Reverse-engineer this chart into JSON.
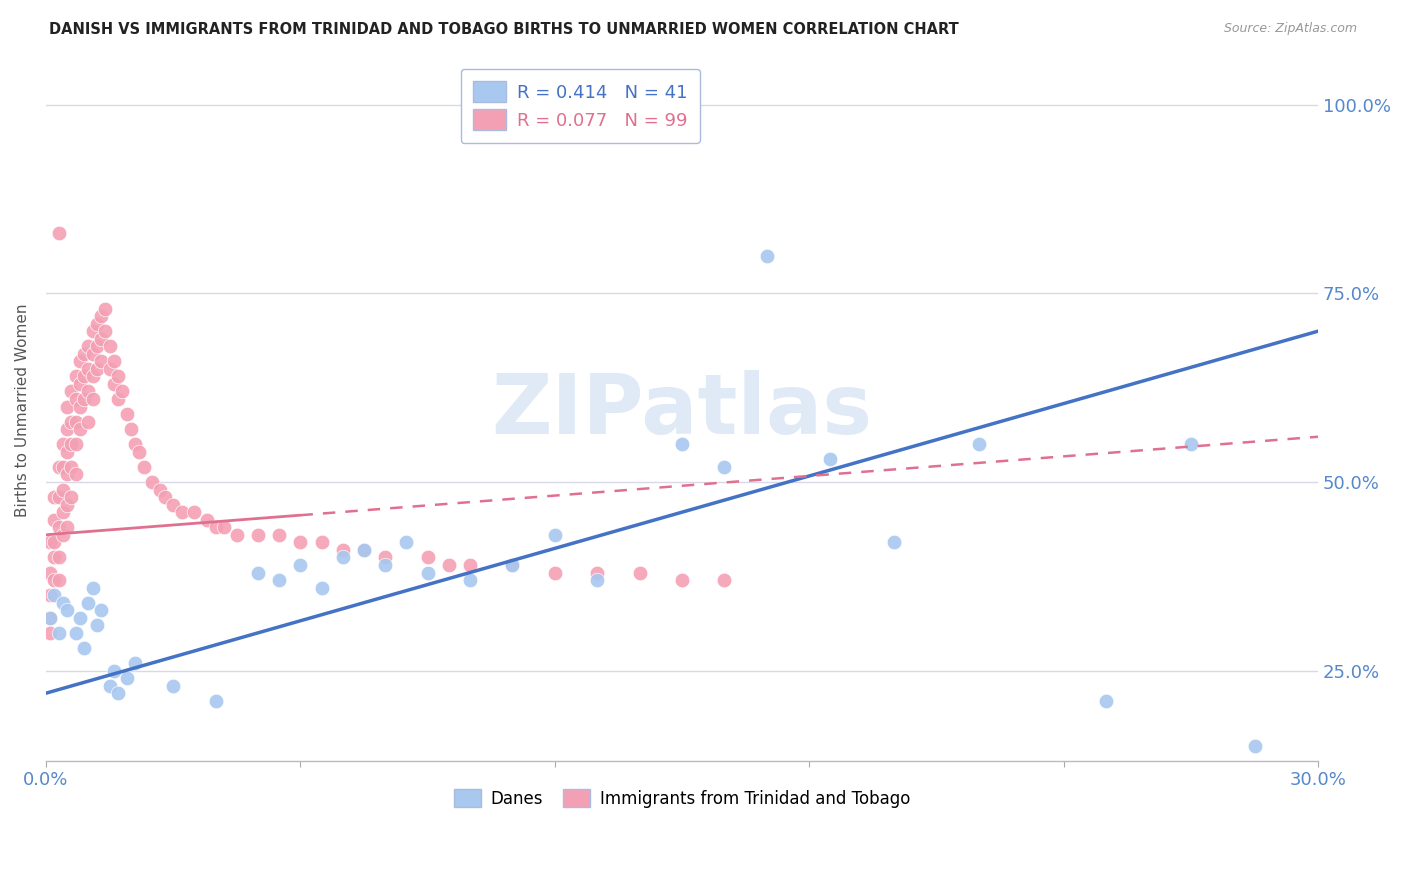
{
  "title": "DANISH VS IMMIGRANTS FROM TRINIDAD AND TOBAGO BIRTHS TO UNMARRIED WOMEN CORRELATION CHART",
  "source": "Source: ZipAtlas.com",
  "ylabel": "Births to Unmarried Women",
  "ytick_labels": [
    "25.0%",
    "50.0%",
    "75.0%",
    "100.0%"
  ],
  "ytick_values": [
    0.25,
    0.5,
    0.75,
    1.0
  ],
  "xlim": [
    0.0,
    0.3
  ],
  "ylim": [
    0.13,
    1.06
  ],
  "danes_R": 0.414,
  "danes_N": 41,
  "immigrants_R": 0.077,
  "immigrants_N": 99,
  "danes_color": "#A8C8F0",
  "immigrants_color": "#F4A0B4",
  "trend_blue": "#4472C4",
  "trend_pink": "#E07090",
  "background_color": "#FFFFFF",
  "grid_color": "#D8D8E8",
  "axis_label_color": "#5588CC",
  "watermark_color": "#C8D8F0",
  "legend_edge_color": "#AABBDD",
  "danes_label": "Danes",
  "immigrants_label": "Immigrants from Trinidad and Tobago",
  "danes_x": [
    0.001,
    0.002,
    0.003,
    0.004,
    0.005,
    0.007,
    0.008,
    0.009,
    0.01,
    0.011,
    0.012,
    0.013,
    0.015,
    0.016,
    0.017,
    0.019,
    0.021,
    0.03,
    0.04,
    0.05,
    0.055,
    0.06,
    0.065,
    0.07,
    0.075,
    0.08,
    0.085,
    0.09,
    0.1,
    0.11,
    0.12,
    0.13,
    0.15,
    0.16,
    0.17,
    0.185,
    0.2,
    0.22,
    0.25,
    0.27,
    0.285
  ],
  "danes_y": [
    0.32,
    0.35,
    0.3,
    0.34,
    0.33,
    0.3,
    0.32,
    0.28,
    0.34,
    0.36,
    0.31,
    0.33,
    0.23,
    0.25,
    0.22,
    0.24,
    0.26,
    0.23,
    0.21,
    0.38,
    0.37,
    0.39,
    0.36,
    0.4,
    0.41,
    0.39,
    0.42,
    0.38,
    0.37,
    0.39,
    0.43,
    0.37,
    0.55,
    0.52,
    0.8,
    0.53,
    0.42,
    0.55,
    0.21,
    0.55,
    0.15
  ],
  "imm_x": [
    0.001,
    0.001,
    0.001,
    0.001,
    0.001,
    0.002,
    0.002,
    0.002,
    0.002,
    0.002,
    0.003,
    0.003,
    0.003,
    0.003,
    0.003,
    0.004,
    0.004,
    0.004,
    0.004,
    0.004,
    0.005,
    0.005,
    0.005,
    0.005,
    0.005,
    0.005,
    0.006,
    0.006,
    0.006,
    0.006,
    0.006,
    0.007,
    0.007,
    0.007,
    0.007,
    0.007,
    0.008,
    0.008,
    0.008,
    0.008,
    0.009,
    0.009,
    0.009,
    0.01,
    0.01,
    0.01,
    0.01,
    0.011,
    0.011,
    0.011,
    0.011,
    0.012,
    0.012,
    0.012,
    0.013,
    0.013,
    0.013,
    0.014,
    0.014,
    0.015,
    0.015,
    0.016,
    0.016,
    0.017,
    0.017,
    0.018,
    0.019,
    0.02,
    0.021,
    0.022,
    0.023,
    0.025,
    0.027,
    0.028,
    0.03,
    0.032,
    0.035,
    0.038,
    0.04,
    0.042,
    0.045,
    0.05,
    0.055,
    0.06,
    0.065,
    0.07,
    0.075,
    0.08,
    0.09,
    0.095,
    0.1,
    0.11,
    0.12,
    0.13,
    0.14,
    0.15,
    0.16,
    0.003
  ],
  "imm_y": [
    0.35,
    0.32,
    0.3,
    0.42,
    0.38,
    0.45,
    0.42,
    0.4,
    0.37,
    0.48,
    0.52,
    0.48,
    0.44,
    0.4,
    0.37,
    0.55,
    0.52,
    0.49,
    0.46,
    0.43,
    0.6,
    0.57,
    0.54,
    0.51,
    0.47,
    0.44,
    0.62,
    0.58,
    0.55,
    0.52,
    0.48,
    0.64,
    0.61,
    0.58,
    0.55,
    0.51,
    0.66,
    0.63,
    0.6,
    0.57,
    0.67,
    0.64,
    0.61,
    0.68,
    0.65,
    0.62,
    0.58,
    0.7,
    0.67,
    0.64,
    0.61,
    0.71,
    0.68,
    0.65,
    0.72,
    0.69,
    0.66,
    0.73,
    0.7,
    0.68,
    0.65,
    0.66,
    0.63,
    0.64,
    0.61,
    0.62,
    0.59,
    0.57,
    0.55,
    0.54,
    0.52,
    0.5,
    0.49,
    0.48,
    0.47,
    0.46,
    0.46,
    0.45,
    0.44,
    0.44,
    0.43,
    0.43,
    0.43,
    0.42,
    0.42,
    0.41,
    0.41,
    0.4,
    0.4,
    0.39,
    0.39,
    0.39,
    0.38,
    0.38,
    0.38,
    0.37,
    0.37,
    0.83
  ],
  "blue_trend_x0": 0.0,
  "blue_trend_y0": 0.22,
  "blue_trend_x1": 0.3,
  "blue_trend_y1": 0.7,
  "pink_trend_x0": 0.0,
  "pink_trend_y0": 0.43,
  "pink_trend_x1": 0.3,
  "pink_trend_y1": 0.56
}
